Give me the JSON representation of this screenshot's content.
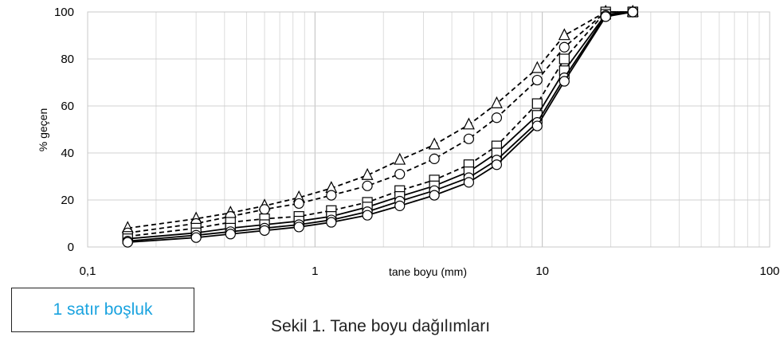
{
  "chart_data": {
    "type": "line",
    "xscale": "log",
    "xlim": [
      0.1,
      100
    ],
    "ylim": [
      0,
      100
    ],
    "xticks": [
      "0,1",
      "1",
      "10",
      "100"
    ],
    "yticks": [
      "0",
      "20",
      "40",
      "60",
      "80",
      "100"
    ],
    "xlabel": "tane boyu (mm)",
    "ylabel": "% geçen",
    "grid": true,
    "x": [
      0.15,
      0.3,
      0.425,
      0.6,
      0.85,
      1.18,
      1.7,
      2.36,
      3.35,
      4.75,
      6.3,
      9.5,
      12.5,
      19,
      25
    ],
    "series": [
      {
        "marker": "triangle",
        "dash": "dashed",
        "values": [
          8,
          12,
          14.5,
          17.5,
          21,
          25,
          30.5,
          37,
          43.5,
          52,
          61,
          76,
          90,
          100,
          100
        ]
      },
      {
        "marker": "circle",
        "dash": "dashed",
        "values": [
          6,
          10,
          13,
          16,
          18.5,
          22,
          26,
          31,
          37.5,
          46,
          55,
          71,
          85,
          100,
          100
        ]
      },
      {
        "marker": "square",
        "dash": "dashed",
        "values": [
          4.5,
          8,
          10.5,
          12,
          13,
          15.5,
          19,
          24,
          28.5,
          35,
          43,
          61,
          80,
          100,
          100
        ]
      },
      {
        "marker": "square",
        "dash": "solid",
        "values": [
          3.5,
          6,
          8,
          9.5,
          11,
          13,
          17,
          21.5,
          26,
          32,
          40,
          56,
          75,
          99,
          100
        ]
      },
      {
        "marker": "circle",
        "dash": "solid",
        "values": [
          2.5,
          5,
          6.5,
          8,
          9.5,
          11.5,
          15,
          19.5,
          24,
          29.5,
          37,
          53,
          72,
          98.5,
          100
        ]
      },
      {
        "marker": "circle",
        "dash": "solid",
        "values": [
          2,
          4,
          5.5,
          7,
          8.5,
          10.5,
          13.5,
          17.5,
          22,
          27.5,
          35,
          51.5,
          70.5,
          98,
          100
        ]
      }
    ]
  },
  "note_box": {
    "text": "1 satır boşluk",
    "color": "#1aa3df"
  },
  "caption": "Sekil 1. Tane boyu dağılımları"
}
